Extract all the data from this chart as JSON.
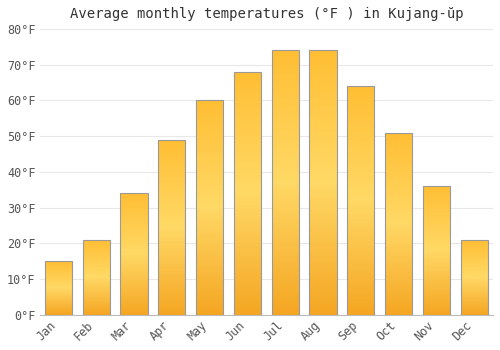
{
  "title": "Average monthly temperatures (°F ) in Kujang-ŭp",
  "months": [
    "Jan",
    "Feb",
    "Mar",
    "Apr",
    "May",
    "Jun",
    "Jul",
    "Aug",
    "Sep",
    "Oct",
    "Nov",
    "Dec"
  ],
  "values": [
    15,
    21,
    34,
    49,
    60,
    68,
    74,
    74,
    64,
    51,
    36,
    21
  ],
  "bar_color_bottom": "#F5A623",
  "bar_color_top": "#FFD966",
  "bar_color_center": "#FFBE33",
  "bar_edge_color": "#999999",
  "background_color": "#FFFFFF",
  "grid_color": "#E8E8E8",
  "tick_label_color": "#555555",
  "title_color": "#333333",
  "ylim": [
    0,
    80
  ],
  "yticks": [
    0,
    10,
    20,
    30,
    40,
    50,
    60,
    70,
    80
  ],
  "ytick_labels": [
    "0°F",
    "10°F",
    "20°F",
    "30°F",
    "40°F",
    "50°F",
    "60°F",
    "70°F",
    "80°F"
  ],
  "title_fontsize": 10,
  "tick_fontsize": 8.5,
  "bar_width": 0.72,
  "figsize": [
    5.0,
    3.5
  ],
  "dpi": 100
}
